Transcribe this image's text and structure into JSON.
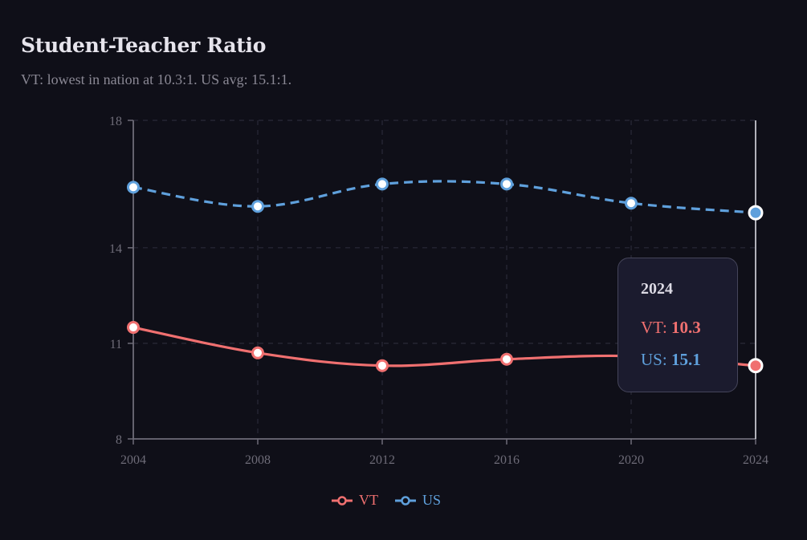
{
  "header": {
    "title": "Student-Teacher Ratio",
    "subtitle": "VT: lowest in nation at 10.3:1. US avg: 15.1:1."
  },
  "colors": {
    "background": "#0f0f18",
    "vt": "#f07070",
    "us": "#5fa0dc",
    "axis": "#6e6c78",
    "grid": "#2a2a38",
    "crosshair": "#e8e8f0"
  },
  "tooltip": {
    "year": "2024",
    "rows": [
      {
        "label": "VT: ",
        "value": "10.3"
      },
      {
        "label": "US: ",
        "value": "15.1"
      }
    ]
  },
  "legend": [
    {
      "label": "VT",
      "icon": "circle-line-icon"
    },
    {
      "label": "US",
      "icon": "circle-line-icon"
    }
  ],
  "chart_data": {
    "type": "line",
    "title": "Student-Teacher Ratio",
    "subtitle": "VT: lowest in nation at 10.3:1. US avg: 15.1:1.",
    "xlabel": "",
    "ylabel": "",
    "x": [
      2004,
      2008,
      2012,
      2016,
      2020,
      2024
    ],
    "x_tick_labels": [
      "2004",
      "2008",
      "2012",
      "2016",
      "2020",
      "2024"
    ],
    "y_ticks": [
      8,
      11,
      14,
      18
    ],
    "ylim": [
      8,
      18
    ],
    "grid": true,
    "legend_position": "bottom",
    "series": [
      {
        "name": "VT",
        "values": [
          11.5,
          10.7,
          10.3,
          10.5,
          10.6,
          10.3
        ],
        "color": "#f07070",
        "style": "solid"
      },
      {
        "name": "US",
        "values": [
          15.9,
          15.3,
          16.0,
          16.0,
          15.4,
          15.1
        ],
        "color": "#5fa0dc",
        "style": "dashed"
      }
    ],
    "highlight": {
      "x": 2024,
      "tooltip": "2024 — VT: 10.3, US: 15.1"
    }
  }
}
